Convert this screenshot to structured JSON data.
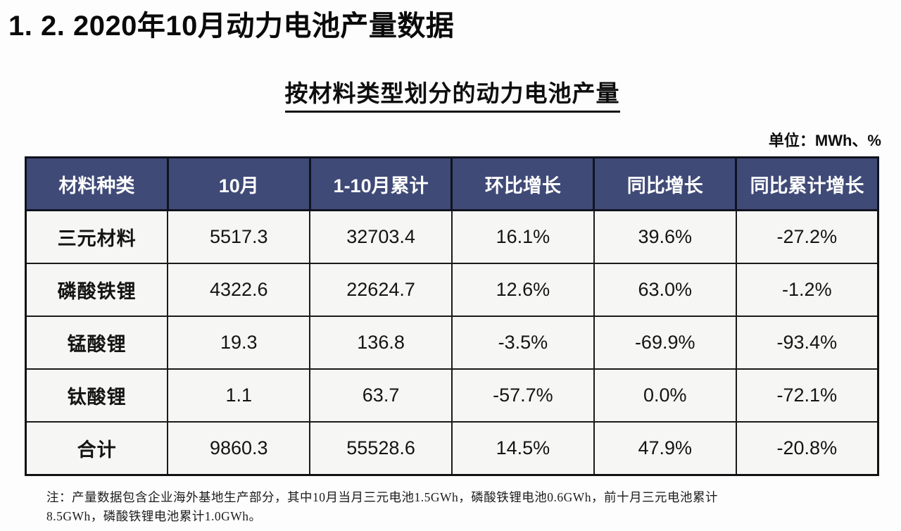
{
  "page": {
    "title": "1. 2. 2020年10月动力电池产量数据",
    "subtitle": "按材料类型划分的动力电池产量",
    "unit_label": "单位：MWh、%",
    "note_line1": "注：产量数据包含企业海外基地生产部分，其中10月当月三元电池1.5GWh，磷酸铁锂电池0.6GWh，前十月三元电池累计",
    "note_line2": "8.5GWh，磷酸铁锂电池累计1.0GWh。"
  },
  "colors": {
    "header_bg": "#3f4a77",
    "header_text": "#ffffff",
    "cell_bg": "#f6f6f4",
    "border": "#1a1a1a"
  },
  "chart_data": {
    "type": "table",
    "title": "按材料类型划分的动力电池产量",
    "unit": "MWh、%",
    "columns": [
      "材料种类",
      "10月",
      "1-10月累计",
      "环比增长",
      "同比增长",
      "同比累计增长"
    ],
    "rows": [
      [
        "三元材料",
        "5517.3",
        "32703.4",
        "16.1%",
        "39.6%",
        "-27.2%"
      ],
      [
        "磷酸铁锂",
        "4322.6",
        "22624.7",
        "12.6%",
        "63.0%",
        "-1.2%"
      ],
      [
        "锰酸锂",
        "19.3",
        "136.8",
        "-3.5%",
        "-69.9%",
        "-93.4%"
      ],
      [
        "钛酸锂",
        "1.1",
        "63.7",
        "-57.7%",
        "0.0%",
        "-72.1%"
      ],
      [
        "合计",
        "9860.3",
        "55528.6",
        "14.5%",
        "47.9%",
        "-20.8%"
      ]
    ]
  }
}
